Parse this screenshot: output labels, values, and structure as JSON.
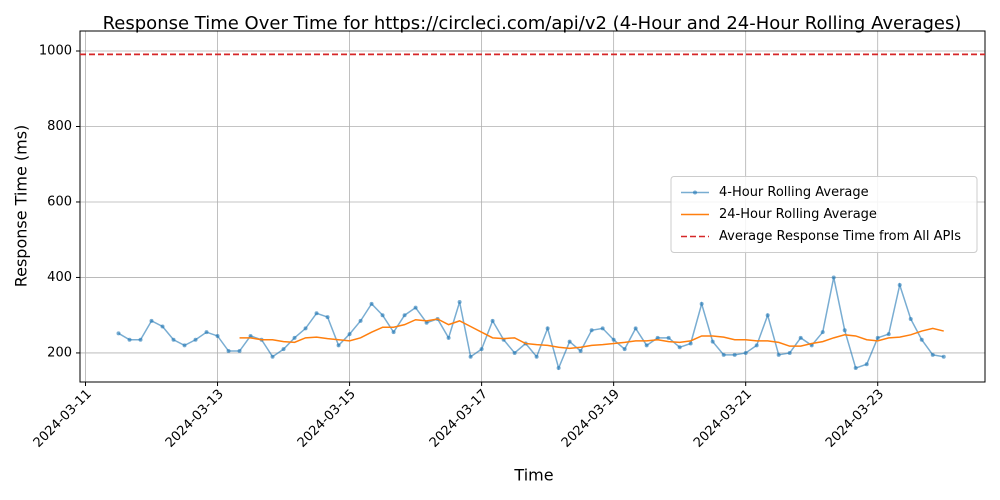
{
  "chart_data": {
    "type": "line",
    "title": "Response Time Over Time for https://circleci.com/api/v2 (4-Hour and 24-Hour Rolling Averages)",
    "x_label": "Time",
    "y_label": "Response Time (ms)",
    "x": [
      "2024-03-11 12:00",
      "2024-03-11 16:00",
      "2024-03-11 20:00",
      "2024-03-12 00:00",
      "2024-03-12 04:00",
      "2024-03-12 08:00",
      "2024-03-12 12:00",
      "2024-03-12 16:00",
      "2024-03-12 20:00",
      "2024-03-13 00:00",
      "2024-03-13 04:00",
      "2024-03-13 08:00",
      "2024-03-13 12:00",
      "2024-03-13 16:00",
      "2024-03-13 20:00",
      "2024-03-14 00:00",
      "2024-03-14 04:00",
      "2024-03-14 08:00",
      "2024-03-14 12:00",
      "2024-03-14 16:00",
      "2024-03-14 20:00",
      "2024-03-15 00:00",
      "2024-03-15 04:00",
      "2024-03-15 08:00",
      "2024-03-15 12:00",
      "2024-03-15 16:00",
      "2024-03-15 20:00",
      "2024-03-16 00:00",
      "2024-03-16 04:00",
      "2024-03-16 08:00",
      "2024-03-16 12:00",
      "2024-03-16 16:00",
      "2024-03-16 20:00",
      "2024-03-17 00:00",
      "2024-03-17 04:00",
      "2024-03-17 08:00",
      "2024-03-17 12:00",
      "2024-03-17 16:00",
      "2024-03-17 20:00",
      "2024-03-18 00:00",
      "2024-03-18 04:00",
      "2024-03-18 08:00",
      "2024-03-18 12:00",
      "2024-03-18 16:00",
      "2024-03-18 20:00",
      "2024-03-19 00:00",
      "2024-03-19 04:00",
      "2024-03-19 08:00",
      "2024-03-19 12:00",
      "2024-03-19 16:00",
      "2024-03-19 20:00",
      "2024-03-20 00:00",
      "2024-03-20 04:00",
      "2024-03-20 08:00",
      "2024-03-20 12:00",
      "2024-03-20 16:00",
      "2024-03-20 20:00",
      "2024-03-21 00:00",
      "2024-03-21 04:00",
      "2024-03-21 08:00",
      "2024-03-21 12:00",
      "2024-03-21 16:00",
      "2024-03-21 20:00",
      "2024-03-22 00:00",
      "2024-03-22 04:00",
      "2024-03-22 08:00",
      "2024-03-22 12:00",
      "2024-03-22 16:00",
      "2024-03-22 20:00",
      "2024-03-23 00:00",
      "2024-03-23 04:00",
      "2024-03-23 08:00",
      "2024-03-23 12:00",
      "2024-03-23 16:00",
      "2024-03-23 20:00",
      "2024-03-24 00:00"
    ],
    "series": [
      {
        "name": "4-Hour Rolling Average",
        "color": "#1f77b4",
        "marker": "o",
        "opacity": 0.6,
        "values": [
          252,
          235,
          235,
          285,
          270,
          235,
          220,
          235,
          255,
          245,
          205,
          205,
          245,
          235,
          190,
          210,
          240,
          265,
          305,
          295,
          220,
          250,
          285,
          330,
          300,
          255,
          300,
          320,
          280,
          290,
          240,
          335,
          190,
          210,
          285,
          235,
          200,
          225,
          190,
          265,
          160,
          230,
          205,
          260,
          265,
          235,
          210,
          265,
          220,
          240,
          240,
          215,
          225,
          330,
          230,
          195,
          195,
          200,
          220,
          300,
          195,
          200,
          240,
          220,
          255,
          400,
          260,
          160,
          170,
          240,
          250,
          380,
          290,
          235,
          195,
          190
        ]
      },
      {
        "name": "24-Hour Rolling Average",
        "color": "#ff7f0e",
        "marker": "none",
        "opacity": 1,
        "values": [
          null,
          null,
          null,
          null,
          null,
          null,
          null,
          null,
          null,
          null,
          null,
          240,
          240,
          235,
          235,
          230,
          228,
          240,
          242,
          238,
          235,
          232,
          240,
          255,
          268,
          268,
          275,
          288,
          285,
          290,
          275,
          285,
          270,
          255,
          240,
          238,
          240,
          225,
          222,
          220,
          215,
          212,
          215,
          220,
          222,
          225,
          228,
          232,
          232,
          235,
          230,
          228,
          232,
          245,
          245,
          242,
          235,
          235,
          232,
          232,
          228,
          218,
          218,
          225,
          230,
          240,
          248,
          245,
          235,
          232,
          240,
          242,
          248,
          258,
          265,
          258
        ]
      }
    ],
    "hlines": [
      {
        "name": "Average Response Time from All APIs",
        "value": 991,
        "color": "#d62728",
        "style": "dashed"
      }
    ],
    "xlim": [
      "2024-03-10 22:00",
      "2024-03-24 15:00"
    ],
    "xticks": [
      "2024-03-11",
      "2024-03-13",
      "2024-03-15",
      "2024-03-17",
      "2024-03-19",
      "2024-03-21",
      "2024-03-23"
    ],
    "ylim": [
      123,
      1053
    ],
    "yticks": [
      200,
      400,
      600,
      800,
      1000
    ],
    "grid": true,
    "legend": "center right"
  }
}
